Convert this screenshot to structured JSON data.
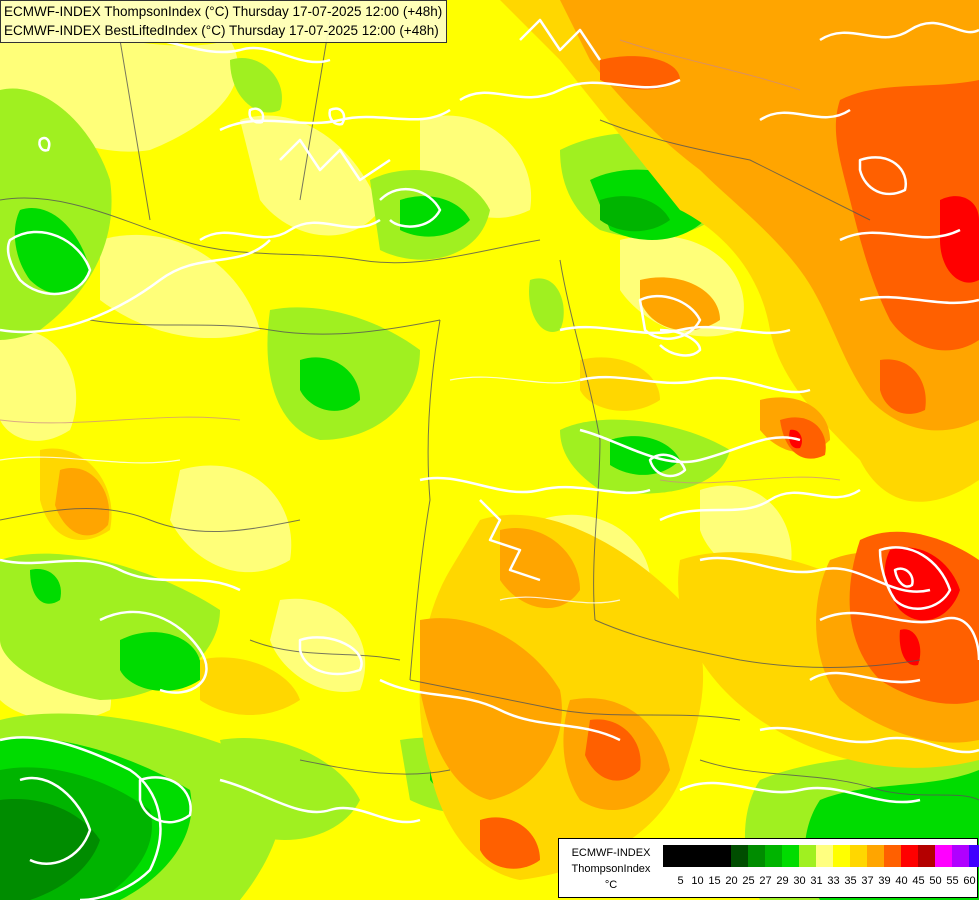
{
  "header": {
    "line1": "ECMWF-INDEX ThompsonIndex (°C) Thursday 17-07-2025 12:00 (+48h)",
    "line2": "ECMWF-INDEX BestLiftedIndex (°C) Thursday 17-07-2025 12:00 (+48h)"
  },
  "legend": {
    "source": "ECMWF-INDEX",
    "parameter": "ThompsonIndex",
    "unit": "°C",
    "ticks": [
      "5",
      "10",
      "15",
      "20",
      "25",
      "27",
      "29",
      "30",
      "31",
      "33",
      "35",
      "37",
      "39",
      "40",
      "45",
      "50",
      "55",
      "60"
    ],
    "colors": [
      "#000000",
      "#000000",
      "#000000",
      "#000000",
      "#004d00",
      "#008c00",
      "#00b400",
      "#00dc00",
      "#a0f020",
      "#ffff80",
      "#ffff00",
      "#ffd700",
      "#ffa500",
      "#ff6000",
      "#ff0000",
      "#b40000",
      "#ff00ff",
      "#b000ff",
      "#4000ff",
      "#0000ff"
    ]
  },
  "map_colors": {
    "yellow": "#ffff00",
    "light_yellow": "#ffff80",
    "gold": "#ffd700",
    "orange": "#ffa500",
    "dark_orange": "#ff6000",
    "red": "#ff0000",
    "dark_red": "#b40000",
    "yellow_green": "#a0f020",
    "green": "#00dc00",
    "mid_green": "#00b400",
    "dark_green": "#008c00"
  }
}
